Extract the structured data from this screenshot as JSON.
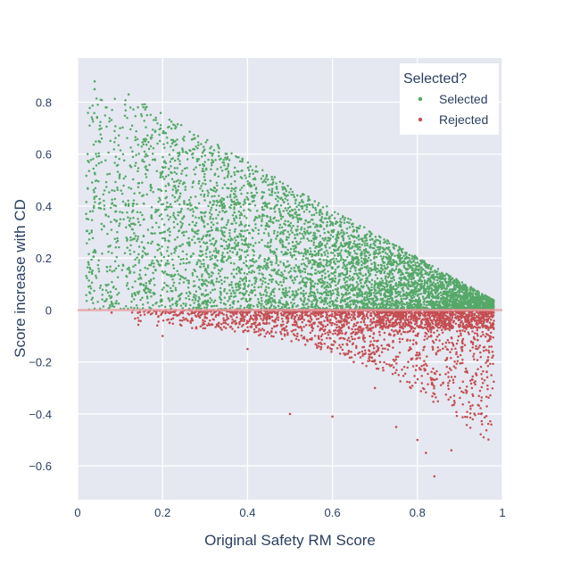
{
  "chart_data": {
    "type": "scatter",
    "title": "",
    "xlabel": "Original Safety RM Score",
    "ylabel": "Score increase with CD",
    "xlim": [
      0,
      1
    ],
    "ylim": [
      -0.73,
      0.97
    ],
    "x_ticks": [
      0,
      0.2,
      0.4,
      0.6,
      0.8,
      1
    ],
    "x_tick_labels": [
      "0",
      "0.2",
      "0.4",
      "0.6",
      "0.8",
      "1"
    ],
    "y_ticks": [
      0.8,
      0.6,
      0.4,
      0.2,
      0,
      -0.2,
      -0.4,
      -0.6
    ],
    "y_tick_labels": [
      "0.8",
      "0.6",
      "0.4",
      "0.2",
      "0",
      "−0.2",
      "−0.4",
      "−0.6"
    ],
    "grid": true,
    "reference_line": {
      "y": 0,
      "color": "#e8a0a4"
    },
    "legend": {
      "title": "Selected?",
      "position": "top-right"
    },
    "series": [
      {
        "name": "Selected",
        "color": "#55a868",
        "sample_points": [
          [
            0.04,
            0.88
          ],
          [
            0.04,
            0.85
          ],
          [
            0.12,
            0.83
          ],
          [
            0.02,
            0.37
          ],
          [
            0.05,
            0.65
          ],
          [
            0.1,
            0.7
          ],
          [
            0.2,
            0.55
          ],
          [
            0.3,
            0.5
          ],
          [
            0.35,
            0.58
          ],
          [
            0.4,
            0.45
          ],
          [
            0.5,
            0.38
          ],
          [
            0.6,
            0.3
          ],
          [
            0.7,
            0.22
          ],
          [
            0.8,
            0.14
          ],
          [
            0.9,
            0.07
          ],
          [
            0.95,
            0.03
          ],
          [
            0.97,
            0.01
          ],
          [
            0.3,
            0.1
          ],
          [
            0.5,
            0.05
          ],
          [
            0.7,
            0.02
          ],
          [
            0.15,
            0.1
          ],
          [
            0.25,
            0.3
          ],
          [
            0.45,
            0.2
          ],
          [
            0.65,
            0.12
          ],
          [
            0.85,
            0.05
          ]
        ],
        "distribution": "dense upper triangle, y between 0 and roughly 0.9*(1 - x)"
      },
      {
        "name": "Rejected",
        "color": "#c44e52",
        "sample_points": [
          [
            0.08,
            -0.01
          ],
          [
            0.2,
            -0.1
          ],
          [
            0.4,
            -0.15
          ],
          [
            0.5,
            -0.4
          ],
          [
            0.6,
            -0.41
          ],
          [
            0.7,
            -0.3
          ],
          [
            0.75,
            -0.45
          ],
          [
            0.8,
            -0.5
          ],
          [
            0.82,
            -0.55
          ],
          [
            0.84,
            -0.64
          ],
          [
            0.88,
            -0.54
          ],
          [
            0.9,
            -0.3
          ],
          [
            0.95,
            -0.4
          ],
          [
            0.97,
            -0.1
          ],
          [
            0.8,
            -0.1
          ],
          [
            0.85,
            -0.05
          ],
          [
            0.9,
            -0.08
          ],
          [
            0.6,
            -0.05
          ],
          [
            0.3,
            -0.03
          ],
          [
            0.65,
            -0.2
          ]
        ],
        "distribution": "below zero, concentrated near 0, denser and deeper toward x ≈ 0.8–0.95"
      }
    ]
  }
}
